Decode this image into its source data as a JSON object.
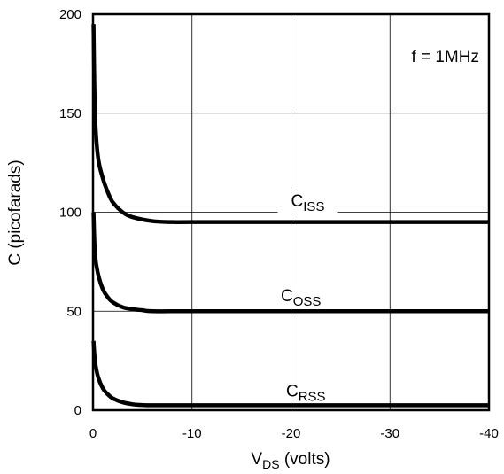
{
  "chart_data": {
    "type": "line",
    "xlabel": {
      "main": "V",
      "sub": "DS",
      "rest": " (volts)"
    },
    "ylabel": "C (picofarads)",
    "annotation": "f = 1MHz",
    "xlim": [
      0,
      -40
    ],
    "ylim": [
      0,
      200
    ],
    "x_ticks": [
      {
        "value": 0,
        "label": "0"
      },
      {
        "value": -10,
        "label": "-10"
      },
      {
        "value": -20,
        "label": "-20"
      },
      {
        "value": -30,
        "label": "-30"
      },
      {
        "value": -40,
        "label": "-40"
      }
    ],
    "y_ticks": [
      {
        "value": 0,
        "label": "0"
      },
      {
        "value": 50,
        "label": "50"
      },
      {
        "value": 100,
        "label": "100"
      },
      {
        "value": 150,
        "label": "150"
      },
      {
        "value": 200,
        "label": "200"
      }
    ],
    "grid": true,
    "series": [
      {
        "name": "CISS",
        "label_main": "C",
        "label_sub": "ISS",
        "x": [
          -0.05,
          -0.2,
          -0.5,
          -1,
          -1.5,
          -2,
          -3,
          -4,
          -6,
          -8,
          -10,
          -20,
          -30,
          -40
        ],
        "y": [
          195,
          150,
          128,
          117,
          110,
          105,
          100,
          97.5,
          95.5,
          95,
          95,
          95,
          95,
          95
        ]
      },
      {
        "name": "COSS",
        "label_main": "C",
        "label_sub": "OSS",
        "x": [
          -0.05,
          -0.2,
          -0.5,
          -1,
          -1.5,
          -2,
          -3,
          -4,
          -5,
          -6,
          -10,
          -20,
          -30,
          -40
        ],
        "y": [
          100,
          79,
          69,
          61,
          57,
          54.5,
          52,
          51,
          50.5,
          50,
          50,
          50,
          50,
          50
        ]
      },
      {
        "name": "CRSS",
        "label_main": "C",
        "label_sub": "RSS",
        "x": [
          -0.05,
          -0.2,
          -0.5,
          -1,
          -1.5,
          -2,
          -3,
          -4,
          -5,
          -6,
          -10,
          -20,
          -30,
          -40
        ],
        "y": [
          35,
          25,
          17,
          11,
          8,
          6,
          4,
          3,
          2.6,
          2.5,
          2.5,
          2.5,
          2.5,
          2.5
        ]
      }
    ]
  }
}
